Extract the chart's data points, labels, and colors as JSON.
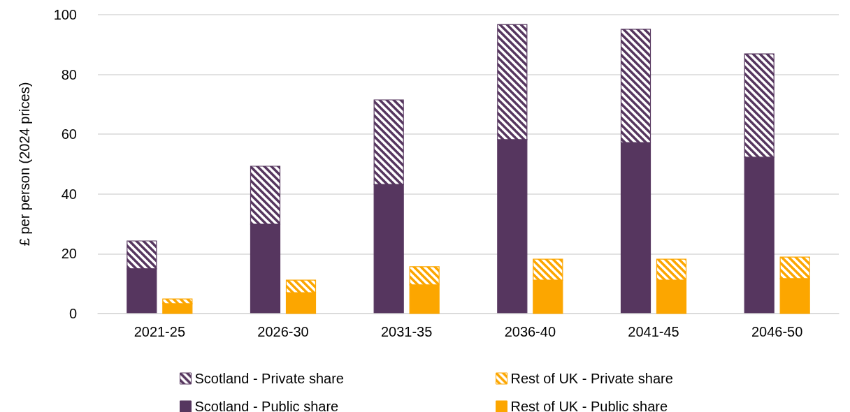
{
  "chart_data": [
    {
      "type": "bar",
      "ylabel": "£ per person (2024 prices)",
      "categories": [
        "2021-25",
        "2026-30",
        "2031-35",
        "2036-40",
        "2041-45",
        "2046-50"
      ],
      "stacked": true,
      "ylim": [
        0,
        100
      ],
      "yticks": [
        0,
        20,
        40,
        60,
        80,
        100
      ],
      "grid": "y",
      "tick_labels": "y",
      "legend": "bottom",
      "series": [
        {
          "name": "Scotland - Public share",
          "color": "#56365f",
          "values": [
            15.0,
            29.9,
            43.2,
            58.2,
            57.2,
            52.3
          ]
        },
        {
          "name": "Scotland - Private share",
          "color": "#56365f",
          "values": [
            9.3,
            19.4,
            28.3,
            38.5,
            37.9,
            34.6
          ]
        }
      ]
    },
    {
      "type": "bar",
      "categories": [
        "2021-25",
        "2026-30",
        "2031-35",
        "2036-40",
        "2041-45",
        "2046-50"
      ],
      "stacked": true,
      "ylim": [
        0,
        100
      ],
      "tick_labels": "x",
      "legend": "bottom",
      "series": [
        {
          "name": "Rest of UK - Public share",
          "color": "#fca600",
          "values": [
            3.3,
            7.0,
            9.6,
            11.2,
            11.2,
            11.7
          ]
        },
        {
          "name": "Rest of UK - Private share",
          "color": "#fca600",
          "values": [
            1.6,
            4.2,
            6.1,
            7.0,
            7.0,
            7.2
          ]
        }
      ]
    }
  ]
}
